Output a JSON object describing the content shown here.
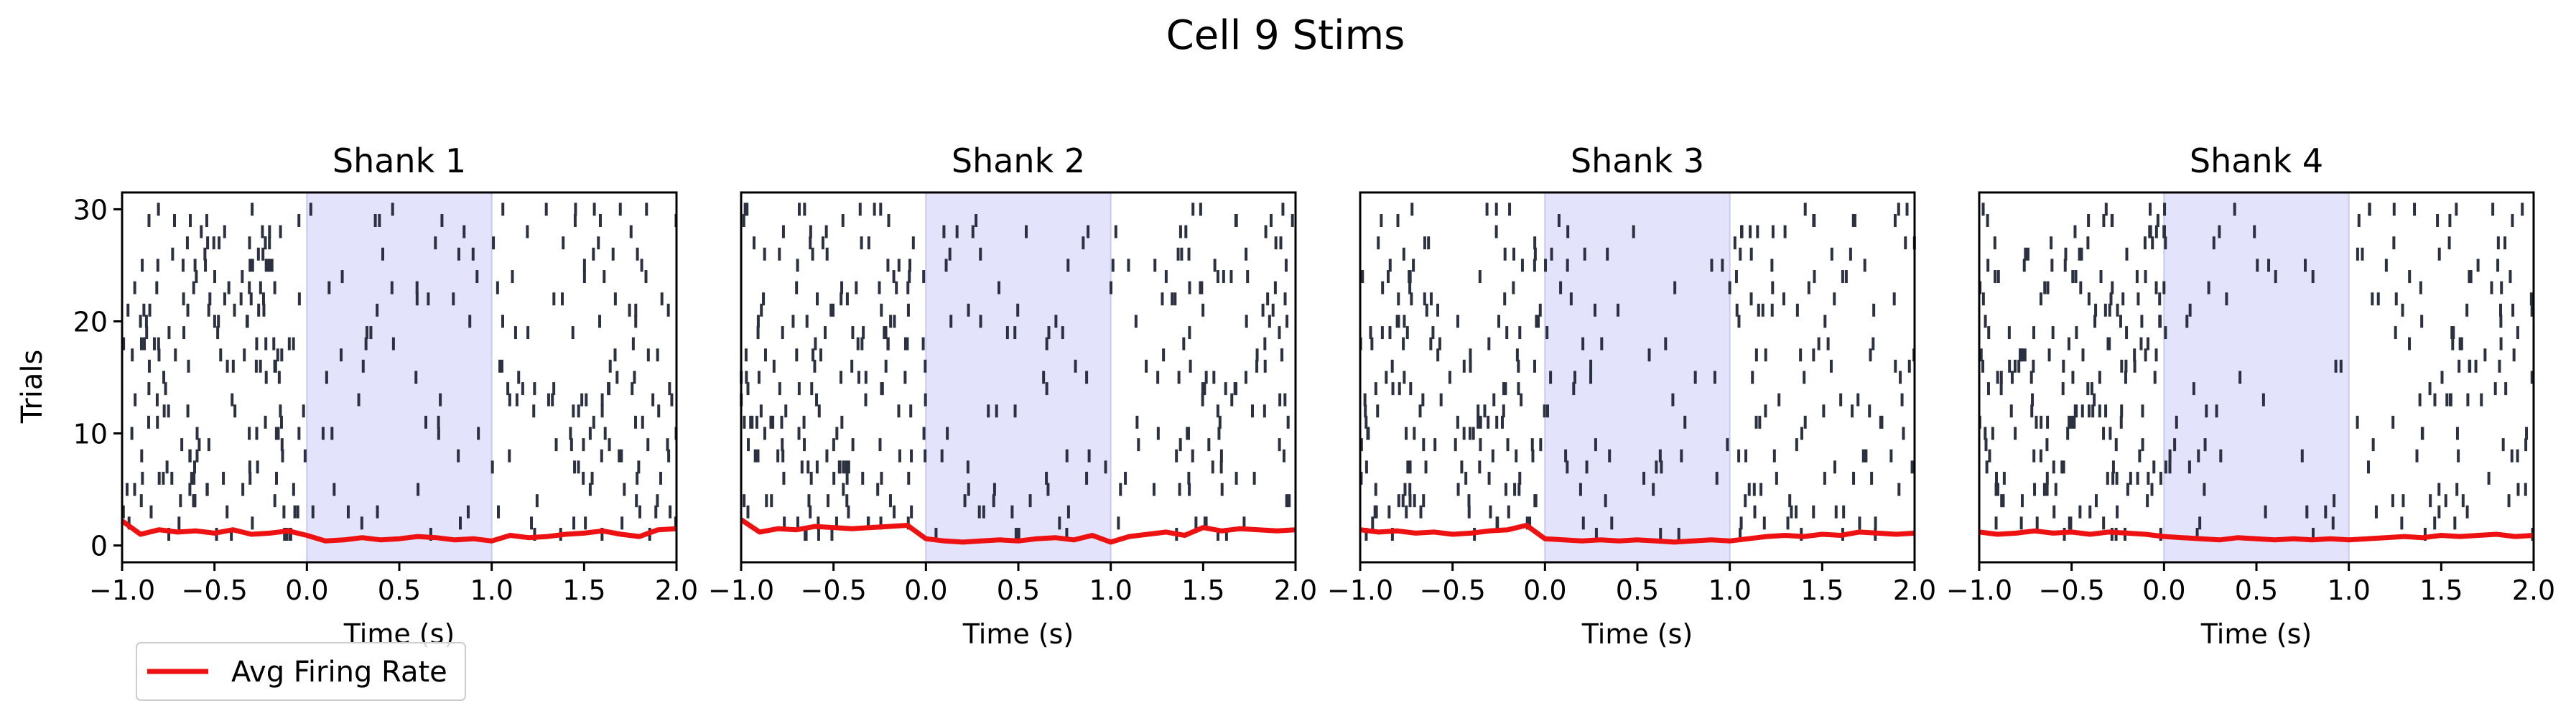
{
  "figure": {
    "suptitle": "Cell 9 Stims",
    "ylabel": "Trials",
    "legend_label": "Avg Firing Rate"
  },
  "colors": {
    "spike": "#2b3140",
    "stim_window": "#e3e3fb",
    "stim_window_edge": "#c9c9f2",
    "firing_rate": "#ee1111",
    "axes": "#000000"
  },
  "chart_data": [
    {
      "type": "raster",
      "title": "Shank 1",
      "xlabel": "Time (s)",
      "ylabel": "Trials",
      "xlim": [
        -1.0,
        2.0
      ],
      "ylim": [
        -1.5,
        31.5
      ],
      "xticks": [
        -1.0,
        -0.5,
        0.0,
        0.5,
        1.0,
        1.5,
        2.0
      ],
      "xtick_labels": [
        "−1.0",
        "−0.5",
        "0.0",
        "0.5",
        "1.0",
        "1.5",
        "2.0"
      ],
      "yticks": [
        0,
        10,
        20,
        30
      ],
      "ytick_labels": [
        "0",
        "10",
        "20",
        "30"
      ],
      "stim_window": [
        0.0,
        1.0
      ],
      "trials": 30,
      "spikes_per_trial": [
        12,
        10,
        14,
        9,
        11,
        13,
        8,
        12,
        10,
        15,
        9,
        11,
        14,
        10,
        8,
        12,
        11,
        13,
        9,
        10,
        12,
        14,
        11,
        9,
        13,
        10,
        12,
        8,
        11,
        10
      ],
      "firing_rate": {
        "x": [
          -1.0,
          -0.9,
          -0.8,
          -0.7,
          -0.6,
          -0.5,
          -0.4,
          -0.3,
          -0.2,
          -0.1,
          0.0,
          0.1,
          0.2,
          0.3,
          0.4,
          0.5,
          0.6,
          0.7,
          0.8,
          0.9,
          1.0,
          1.1,
          1.2,
          1.3,
          1.4,
          1.5,
          1.6,
          1.7,
          1.8,
          1.9,
          2.0
        ],
        "y": [
          2.2,
          1.0,
          1.4,
          1.2,
          1.3,
          1.1,
          1.4,
          1.0,
          1.1,
          1.3,
          0.9,
          0.4,
          0.5,
          0.7,
          0.5,
          0.6,
          0.8,
          0.7,
          0.5,
          0.6,
          0.4,
          0.9,
          0.7,
          0.8,
          1.0,
          1.1,
          1.3,
          1.0,
          0.8,
          1.4,
          1.5
        ]
      }
    },
    {
      "type": "raster",
      "title": "Shank 2",
      "xlabel": "Time (s)",
      "ylabel": "",
      "xlim": [
        -1.0,
        2.0
      ],
      "ylim": [
        -1.5,
        31.5
      ],
      "xticks": [
        -1.0,
        -0.5,
        0.0,
        0.5,
        1.0,
        1.5,
        2.0
      ],
      "xtick_labels": [
        "−1.0",
        "−0.5",
        "0.0",
        "0.5",
        "1.0",
        "1.5",
        "2.0"
      ],
      "stim_window": [
        0.0,
        1.0
      ],
      "trials": 30,
      "spikes_per_trial": [
        11,
        14,
        9,
        12,
        10,
        13,
        12,
        15,
        10,
        9,
        13,
        11,
        8,
        12,
        14,
        10,
        9,
        11,
        13,
        12,
        10,
        9,
        12,
        8,
        11,
        10,
        9,
        12,
        8,
        10
      ],
      "firing_rate": {
        "x": [
          -1.0,
          -0.9,
          -0.8,
          -0.7,
          -0.6,
          -0.5,
          -0.4,
          -0.3,
          -0.2,
          -0.1,
          0.0,
          0.1,
          0.2,
          0.3,
          0.4,
          0.5,
          0.6,
          0.7,
          0.8,
          0.9,
          1.0,
          1.1,
          1.2,
          1.3,
          1.4,
          1.5,
          1.6,
          1.7,
          1.8,
          1.9,
          2.0
        ],
        "y": [
          2.3,
          1.2,
          1.5,
          1.4,
          1.7,
          1.6,
          1.5,
          1.6,
          1.7,
          1.8,
          0.6,
          0.4,
          0.3,
          0.4,
          0.5,
          0.4,
          0.6,
          0.7,
          0.5,
          0.9,
          0.3,
          0.8,
          1.0,
          1.2,
          0.9,
          1.6,
          1.3,
          1.5,
          1.4,
          1.3,
          1.4
        ]
      }
    },
    {
      "type": "raster",
      "title": "Shank 3",
      "xlabel": "Time (s)",
      "ylabel": "",
      "xlim": [
        -1.0,
        2.0
      ],
      "ylim": [
        -1.5,
        31.5
      ],
      "xticks": [
        -1.0,
        -0.5,
        0.0,
        0.5,
        1.0,
        1.5,
        2.0
      ],
      "xtick_labels": [
        "−1.0",
        "−0.5",
        "0.0",
        "0.5",
        "1.0",
        "1.5",
        "2.0"
      ],
      "stim_window": [
        0.0,
        1.0
      ],
      "trials": 30,
      "spikes_per_trial": [
        10,
        12,
        14,
        11,
        13,
        10,
        12,
        14,
        11,
        9,
        13,
        12,
        10,
        8,
        11,
        9,
        10,
        12,
        8,
        9,
        11,
        10,
        8,
        9,
        10,
        11,
        7,
        9,
        8,
        7
      ],
      "firing_rate": {
        "x": [
          -1.0,
          -0.9,
          -0.8,
          -0.7,
          -0.6,
          -0.5,
          -0.4,
          -0.3,
          -0.2,
          -0.1,
          0.0,
          0.1,
          0.2,
          0.3,
          0.4,
          0.5,
          0.6,
          0.7,
          0.8,
          0.9,
          1.0,
          1.1,
          1.2,
          1.3,
          1.4,
          1.5,
          1.6,
          1.7,
          1.8,
          1.9,
          2.0
        ],
        "y": [
          1.4,
          1.2,
          1.3,
          1.1,
          1.2,
          1.0,
          1.1,
          1.3,
          1.4,
          1.8,
          0.6,
          0.5,
          0.4,
          0.5,
          0.4,
          0.5,
          0.4,
          0.3,
          0.4,
          0.5,
          0.4,
          0.6,
          0.8,
          0.9,
          0.8,
          1.0,
          0.9,
          1.2,
          1.1,
          1.0,
          1.1
        ]
      }
    },
    {
      "type": "raster",
      "title": "Shank 4",
      "xlabel": "Time (s)",
      "ylabel": "",
      "xlim": [
        -1.0,
        2.0
      ],
      "ylim": [
        -1.5,
        31.5
      ],
      "xticks": [
        -1.0,
        -0.5,
        0.0,
        0.5,
        1.0,
        1.5,
        2.0
      ],
      "xtick_labels": [
        "−1.0",
        "−0.5",
        "0.0",
        "0.5",
        "1.0",
        "1.5",
        "2.0"
      ],
      "stim_window": [
        0.0,
        1.0
      ],
      "trials": 30,
      "spikes_per_trial": [
        9,
        11,
        10,
        12,
        13,
        11,
        10,
        12,
        9,
        10,
        11,
        13,
        10,
        9,
        11,
        16,
        12,
        10,
        11,
        9,
        10,
        12,
        11,
        13,
        10,
        9,
        11,
        8,
        10,
        12
      ],
      "firing_rate": {
        "x": [
          -1.0,
          -0.9,
          -0.8,
          -0.7,
          -0.6,
          -0.5,
          -0.4,
          -0.3,
          -0.2,
          -0.1,
          0.0,
          0.1,
          0.2,
          0.3,
          0.4,
          0.5,
          0.6,
          0.7,
          0.8,
          0.9,
          1.0,
          1.1,
          1.2,
          1.3,
          1.4,
          1.5,
          1.6,
          1.7,
          1.8,
          1.9,
          2.0
        ],
        "y": [
          1.2,
          1.0,
          1.1,
          1.3,
          1.1,
          1.2,
          1.0,
          1.2,
          1.1,
          1.0,
          0.8,
          0.7,
          0.6,
          0.5,
          0.7,
          0.6,
          0.5,
          0.6,
          0.5,
          0.6,
          0.5,
          0.6,
          0.7,
          0.8,
          0.7,
          0.9,
          0.8,
          0.9,
          1.0,
          0.8,
          0.9
        ]
      }
    }
  ]
}
